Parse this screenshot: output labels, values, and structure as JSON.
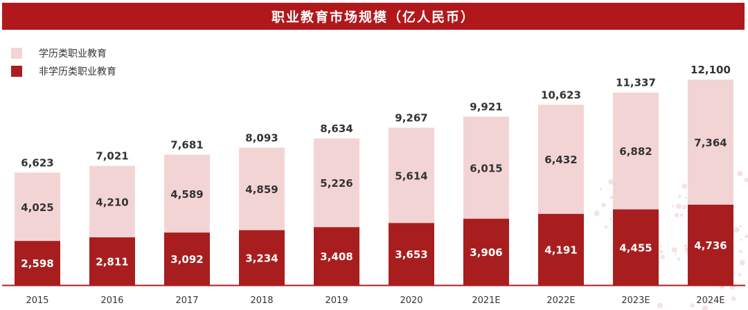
{
  "chart_data": {
    "type": "bar",
    "title": "职业教育市场规模（亿人民币）",
    "categories": [
      "2015",
      "2016",
      "2017",
      "2018",
      "2019",
      "2020",
      "2021E",
      "2022E",
      "2023E",
      "2024E"
    ],
    "series": [
      {
        "name": "非学历类职业教育",
        "values": [
          2598,
          2811,
          3092,
          3234,
          3408,
          3653,
          3906,
          4191,
          4455,
          4736
        ]
      },
      {
        "name": "学历类职业教育",
        "values": [
          4025,
          4210,
          4589,
          4859,
          5226,
          5614,
          6015,
          6432,
          6882,
          7364
        ]
      }
    ],
    "totals": [
      6623,
      7021,
      7681,
      8093,
      8634,
      9267,
      9921,
      10623,
      11337,
      12100
    ],
    "stacked": true,
    "legend_position": "top-left",
    "grid": false,
    "colors": {
      "title_bar": "#b0181c",
      "lower_series": "#a81e1f",
      "upper_series": "#f3d4d5",
      "value_dark": "#333333",
      "value_light": "#ffffff",
      "axis": "#a81e1f"
    }
  }
}
